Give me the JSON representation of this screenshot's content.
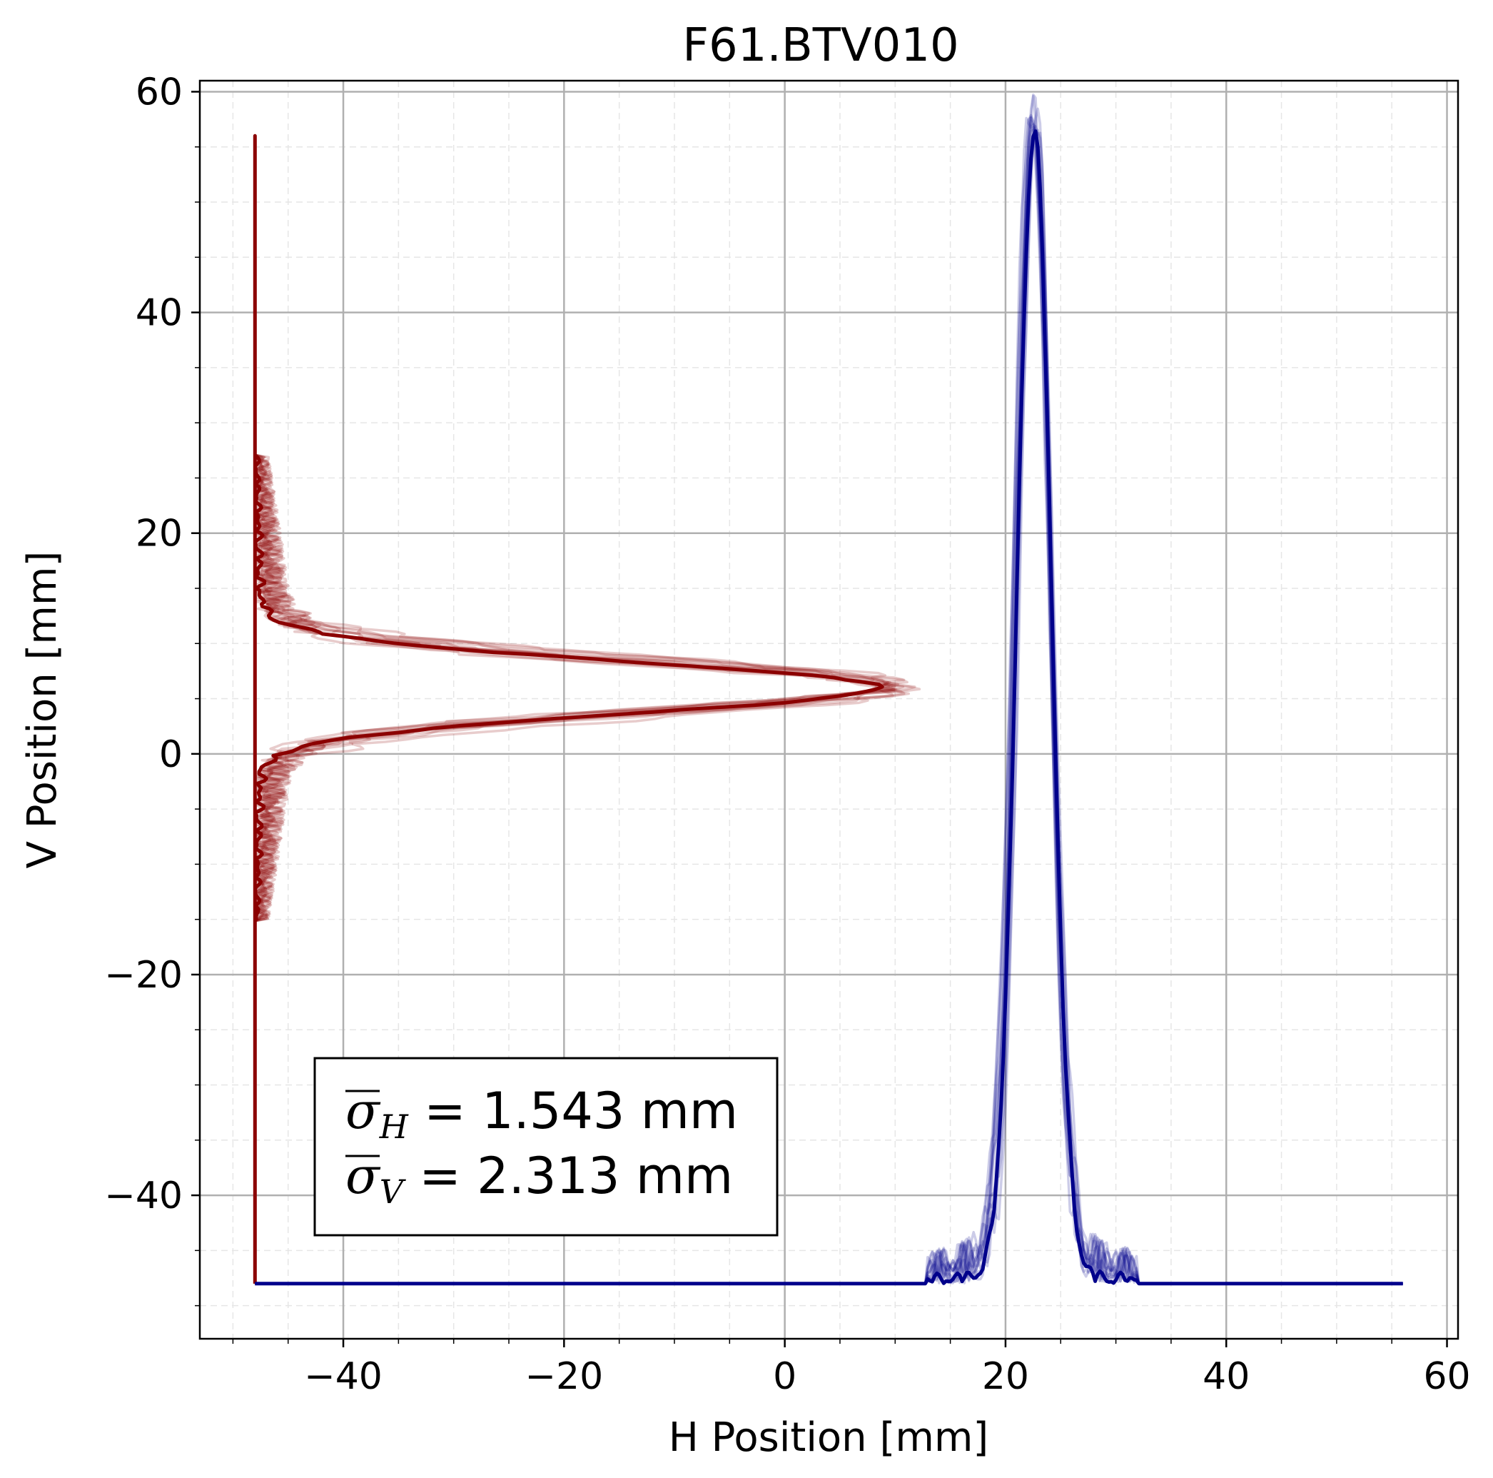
{
  "chart_data": {
    "type": "line",
    "title": "F61.BTV010",
    "xlabel": "H Position [mm]",
    "ylabel": "V Position [mm]",
    "xlim": [
      -53,
      61
    ],
    "ylim": [
      -53,
      61
    ],
    "xticks": [
      -40,
      -20,
      0,
      20,
      40,
      60
    ],
    "yticks": [
      -40,
      -20,
      0,
      20,
      40,
      60
    ],
    "xtick_labels": [
      "−40",
      "−20",
      "0",
      "20",
      "40",
      "60"
    ],
    "ytick_labels": [
      "−40",
      "−20",
      "0",
      "20",
      "40",
      "60"
    ],
    "grid": true,
    "minor_grid": true,
    "annotation": {
      "line_h": {
        "sym": "σ",
        "sub": "H",
        "value": " = 1.543 mm"
      },
      "line_v": {
        "sym": "σ",
        "sub": "V",
        "value": " = 2.313 mm"
      },
      "position": "bottom-left"
    },
    "series": [
      {
        "color": "#8b0000",
        "orientation": "vertical",
        "baseline_x": -48,
        "y_range": [
          -48,
          56
        ],
        "peak_center_y": 6.0,
        "peak_height_x": 7.8,
        "sigma": 2.313,
        "noise_region_y": [
          -15,
          27
        ],
        "noise_amplitude_x": 3.0,
        "overlay_count": 12
      },
      {
        "color": "#00008b",
        "orientation": "horizontal",
        "baseline_y": -48,
        "x_range": [
          -48,
          56
        ],
        "peak_center_x": 22.6,
        "peak_height_y": 55.8,
        "sigma": 1.543,
        "noise_region_x": [
          12.8,
          32
        ],
        "noise_amplitude_y": 4.0,
        "overlay_count": 12
      }
    ]
  }
}
